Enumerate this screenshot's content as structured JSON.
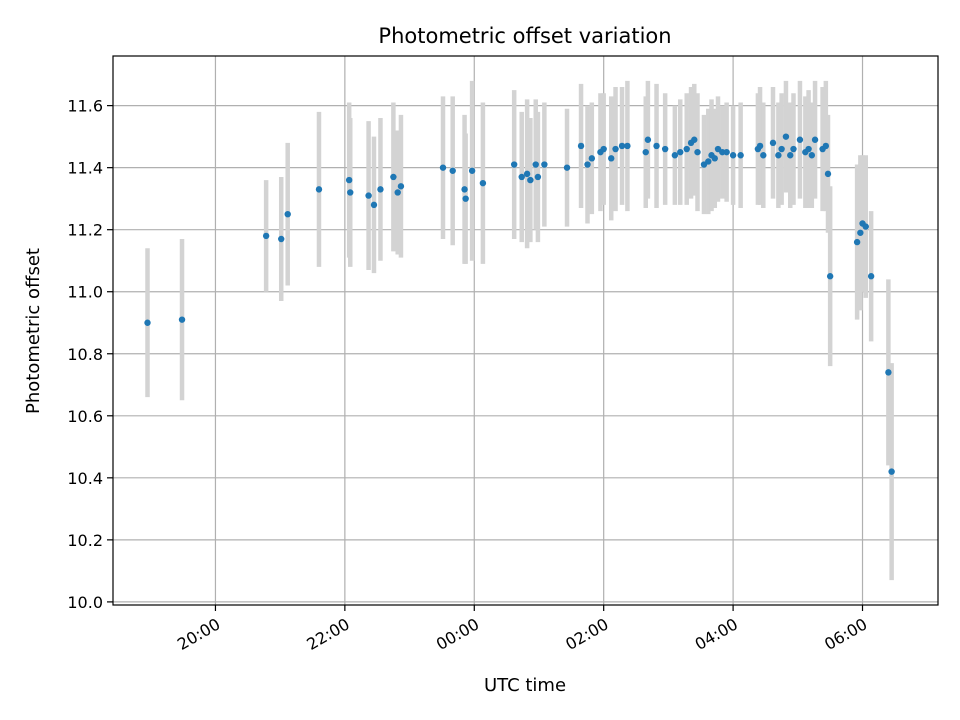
{
  "chart_data": {
    "type": "scatter",
    "title": "Photometric offset variation",
    "xlabel": "UTC time",
    "ylabel": "Photometric offset",
    "x_axis_type": "time",
    "xlim": [
      "18:25",
      "07:10"
    ],
    "ylim": [
      9.99,
      11.76
    ],
    "x_ticks": [
      "20:00",
      "22:00",
      "00:00",
      "02:00",
      "04:00",
      "06:00"
    ],
    "y_ticks": [
      10.0,
      10.2,
      10.4,
      10.6,
      10.8,
      11.0,
      11.2,
      11.4,
      11.6
    ],
    "grid": true,
    "point_color": "#1f77b4",
    "errorbar_color": "#d3d3d3",
    "series": [
      {
        "x": [
          "18:57",
          "19:29",
          "20:47",
          "21:01",
          "21:07",
          "21:36",
          "22:04",
          "22:05",
          "22:22",
          "22:27",
          "22:33",
          "22:45",
          "22:49",
          "22:52",
          "23:31",
          "23:40",
          "23:51",
          "23:52",
          "23:58",
          "24:08",
          "24:37",
          "24:44",
          "24:49",
          "24:52",
          "24:57",
          "24:59",
          "25:05",
          "25:26",
          "25:39",
          "25:45",
          "25:49",
          "25:57",
          "26:00",
          "26:07",
          "26:11",
          "26:17",
          "26:22",
          "26:39",
          "26:41",
          "26:49",
          "26:57",
          "27:06",
          "27:11",
          "27:17",
          "27:21",
          "27:24",
          "27:27",
          "27:33",
          "27:37",
          "27:40",
          "27:43",
          "27:46",
          "27:50",
          "27:54",
          "28:00",
          "28:07",
          "28:23",
          "28:25",
          "28:28",
          "28:37",
          "28:42",
          "28:45",
          "28:49",
          "28:53",
          "28:56",
          "29:02",
          "29:07",
          "29:10",
          "29:13",
          "29:16",
          "29:23",
          "29:26",
          "29:28",
          "29:30",
          "29:55",
          "29:58",
          "30:00",
          "30:03",
          "30:08",
          "30:24",
          "30:27"
        ],
        "y": [
          10.9,
          10.91,
          11.18,
          11.17,
          11.25,
          11.33,
          11.36,
          11.32,
          11.31,
          11.28,
          11.33,
          11.37,
          11.32,
          11.34,
          11.4,
          11.39,
          11.33,
          11.3,
          11.39,
          11.35,
          11.41,
          11.37,
          11.38,
          11.36,
          11.41,
          11.37,
          11.41,
          11.4,
          11.47,
          11.41,
          11.43,
          11.45,
          11.46,
          11.43,
          11.46,
          11.47,
          11.47,
          11.45,
          11.49,
          11.47,
          11.46,
          11.44,
          11.45,
          11.46,
          11.48,
          11.49,
          11.45,
          11.41,
          11.42,
          11.44,
          11.43,
          11.46,
          11.45,
          11.45,
          11.44,
          11.44,
          11.46,
          11.47,
          11.44,
          11.48,
          11.44,
          11.46,
          11.5,
          11.44,
          11.46,
          11.49,
          11.45,
          11.46,
          11.44,
          11.49,
          11.46,
          11.47,
          11.38,
          11.05,
          11.16,
          11.19,
          11.22,
          11.21,
          11.05,
          10.74,
          10.42
        ],
        "yerr": [
          0.24,
          0.26,
          0.18,
          0.2,
          0.23,
          0.25,
          0.25,
          0.24,
          0.24,
          0.22,
          0.23,
          0.24,
          0.2,
          0.23,
          0.23,
          0.24,
          0.24,
          0.21,
          0.29,
          0.26,
          0.24,
          0.21,
          0.24,
          0.2,
          0.21,
          0.21,
          0.2,
          0.19,
          0.2,
          0.19,
          0.18,
          0.19,
          0.18,
          0.2,
          0.2,
          0.19,
          0.21,
          0.18,
          0.19,
          0.2,
          0.18,
          0.16,
          0.17,
          0.18,
          0.18,
          0.18,
          0.19,
          0.16,
          0.17,
          0.18,
          0.16,
          0.17,
          0.15,
          0.16,
          0.16,
          0.17,
          0.18,
          0.19,
          0.17,
          0.18,
          0.17,
          0.18,
          0.18,
          0.17,
          0.18,
          0.19,
          0.18,
          0.19,
          0.17,
          0.19,
          0.2,
          0.21,
          0.19,
          0.29,
          0.25,
          0.25,
          0.22,
          0.23,
          0.21,
          0.3,
          0.35
        ]
      }
    ]
  }
}
